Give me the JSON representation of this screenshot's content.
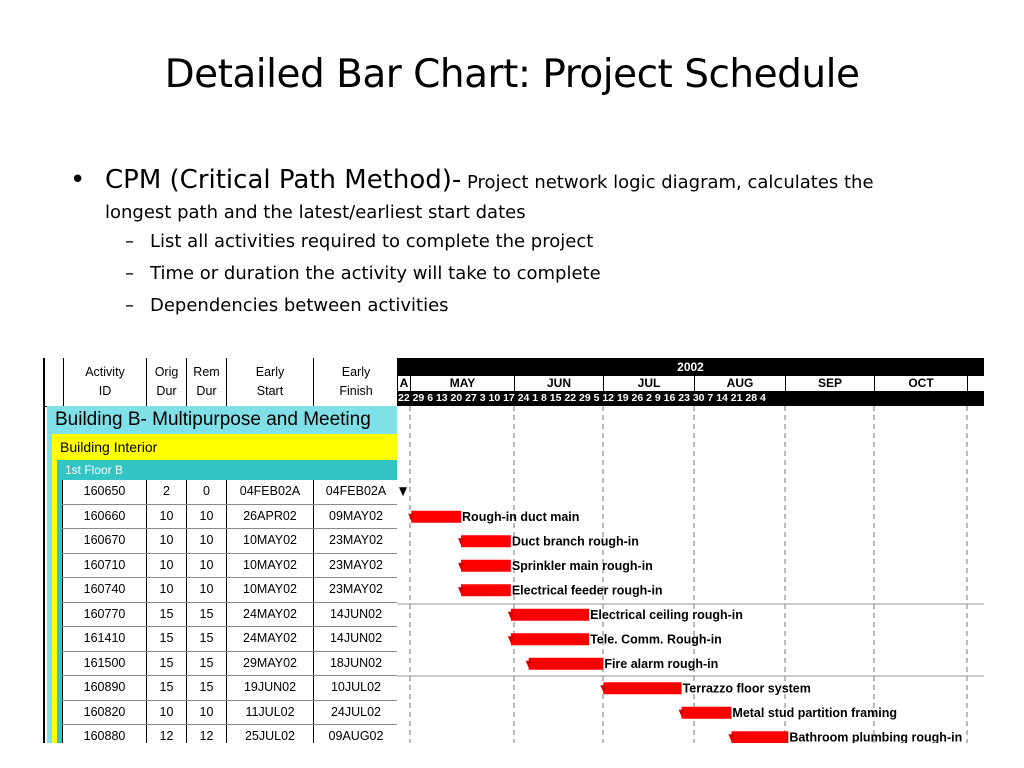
{
  "slide": {
    "title": "Detailed Bar Chart: Project Schedule",
    "bullet_main_large": "CPM (Critical Path Method)-",
    "bullet_main_small": " Project network logic diagram, calculates the",
    "bullet_main_cont": "longest path and the latest/earliest start dates",
    "sub_bullets": [
      "List all activities required to complete the project",
      "Time or duration the activity will take to complete",
      "Dependencies between activities"
    ]
  },
  "gantt": {
    "columns": [
      {
        "line1": "Activity",
        "line2": "ID"
      },
      {
        "line1": "Orig",
        "line2": "Dur"
      },
      {
        "line1": "Rem",
        "line2": "Dur"
      },
      {
        "line1": "Early",
        "line2": "Start"
      },
      {
        "line1": "Early",
        "line2": "Finish"
      }
    ],
    "year": "2002",
    "months": [
      "A",
      "MAY",
      "JUN",
      "JUL",
      "AUG",
      "SEP",
      "OCT"
    ],
    "days_text": "22 29 6  13 20 27 3  10 17 24 1  8  15 22 29 5  12 19 26 2  9  16 23 30 7  14 21 28 4",
    "project_title": "Building B- Multipurpose and Meeting",
    "area_title": "Building Interior",
    "floor_title": "1st Floor B",
    "colors": {
      "bar": "#ff0000",
      "project": "#7fe0e8",
      "area": "#ffff00",
      "floor": "#33c4c4"
    },
    "activities": [
      {
        "id": "160650",
        "orig": "2",
        "rem": "0",
        "start": "04FEB02A",
        "finish": "04FEB02A",
        "label": ""
      },
      {
        "id": "160660",
        "orig": "10",
        "rem": "10",
        "start": "26APR02",
        "finish": "09MAY02",
        "label": "Rough-in duct main"
      },
      {
        "id": "160670",
        "orig": "10",
        "rem": "10",
        "start": "10MAY02",
        "finish": "23MAY02",
        "label": "Duct branch rough-in"
      },
      {
        "id": "160710",
        "orig": "10",
        "rem": "10",
        "start": "10MAY02",
        "finish": "23MAY02",
        "label": "Sprinkler main rough-in"
      },
      {
        "id": "160740",
        "orig": "10",
        "rem": "10",
        "start": "10MAY02",
        "finish": "23MAY02",
        "label": "Electrical feeder rough-in"
      },
      {
        "id": "160770",
        "orig": "15",
        "rem": "15",
        "start": "24MAY02",
        "finish": "14JUN02",
        "label": "Electrical ceiling rough-in"
      },
      {
        "id": "161410",
        "orig": "15",
        "rem": "15",
        "start": "24MAY02",
        "finish": "14JUN02",
        "label": "Tele. Comm. Rough-in"
      },
      {
        "id": "161500",
        "orig": "15",
        "rem": "15",
        "start": "29MAY02",
        "finish": "18JUN02",
        "label": "Fire alarm rough-in"
      },
      {
        "id": "160890",
        "orig": "15",
        "rem": "15",
        "start": "19JUN02",
        "finish": "10JUL02",
        "label": "Terrazzo floor system"
      },
      {
        "id": "160820",
        "orig": "10",
        "rem": "10",
        "start": "11JUL02",
        "finish": "24JUL02",
        "label": "Metal stud partition framing"
      },
      {
        "id": "160880",
        "orig": "12",
        "rem": "12",
        "start": "25JUL02",
        "finish": "09AUG02",
        "label": "Bathroom plumbing rough-in"
      }
    ]
  }
}
